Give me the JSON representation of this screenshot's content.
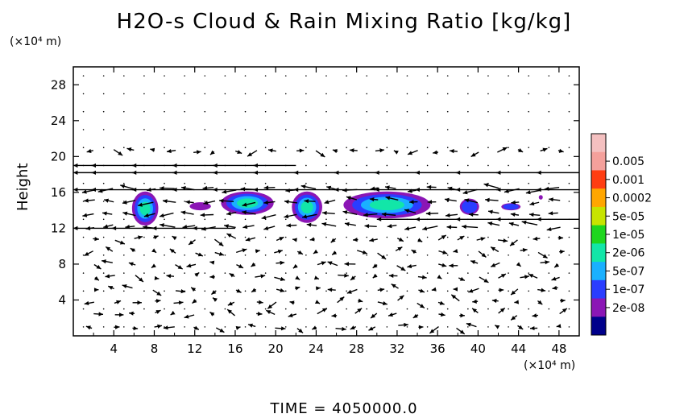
{
  "chart_data": {
    "type": "heatmap",
    "title": "H2O-s Cloud & Rain Mixing Ratio [kg/kg]",
    "ylabel": "Height",
    "xlabel": "",
    "x_unit_label": "(×10⁴ m)",
    "y_unit_label": "(×10⁴ m)",
    "xlim": [
      0,
      50
    ],
    "ylim": [
      0,
      30
    ],
    "x_ticks": [
      4,
      8,
      12,
      16,
      20,
      24,
      28,
      32,
      36,
      40,
      44,
      48
    ],
    "y_ticks": [
      4,
      8,
      12,
      16,
      20,
      24,
      28
    ],
    "grid": true,
    "legend_position": "right",
    "colorbar": [
      {
        "label": "0.005",
        "color": "#f4a09b"
      },
      {
        "label": "0.001",
        "color": "#ff3d12"
      },
      {
        "label": "0.0002",
        "color": "#ffa600"
      },
      {
        "label": "5e-05",
        "color": "#c7e400"
      },
      {
        "label": "1e-05",
        "color": "#1ed61e"
      },
      {
        "label": "2e-06",
        "color": "#12e6a8"
      },
      {
        "label": "5e-07",
        "color": "#1ab0ff"
      },
      {
        "label": "1e-07",
        "color": "#2a3dff"
      },
      {
        "label": "2e-08",
        "color": "#8b16b5"
      }
    ],
    "extra_colorbar_colors": [
      "#f4c0c0",
      "#00008b"
    ],
    "cloud_regions": [
      {
        "x_range": [
          5.8,
          8.4
        ],
        "y_range": [
          12.3,
          16.1
        ],
        "peak": "2e-06"
      },
      {
        "x_range": [
          11.5,
          13.6
        ],
        "y_range": [
          14.0,
          14.9
        ],
        "peak": "2e-08"
      },
      {
        "x_range": [
          14.6,
          19.8
        ],
        "y_range": [
          13.5,
          16.1
        ],
        "peak": "2e-06"
      },
      {
        "x_range": [
          21.6,
          24.6
        ],
        "y_range": [
          12.6,
          16.1
        ],
        "peak": "2e-06"
      },
      {
        "x_range": [
          26.7,
          35.3
        ],
        "y_range": [
          13.1,
          16.1
        ],
        "peak": "2e-06"
      },
      {
        "x_range": [
          38.2,
          40.1
        ],
        "y_range": [
          13.5,
          15.3
        ],
        "peak": "1e-07"
      },
      {
        "x_range": [
          42.3,
          44.2
        ],
        "y_range": [
          14.0,
          14.8
        ],
        "peak": "1e-07"
      },
      {
        "x_range": [
          46.0,
          46.4
        ],
        "y_range": [
          15.2,
          15.7
        ],
        "peak": "2e-08"
      }
    ],
    "wind_jets": [
      {
        "y": 19.0,
        "direction": "westward",
        "x_range": [
          0,
          22
        ]
      },
      {
        "y": 18.2,
        "direction": "westward",
        "x_range": [
          0,
          50
        ]
      },
      {
        "y": 16.3,
        "direction": "westward",
        "x_range": [
          0,
          50
        ]
      },
      {
        "y": 13.0,
        "direction": "westward",
        "x_range": [
          30,
          50
        ]
      },
      {
        "y": 12.0,
        "direction": "westward",
        "x_range": [
          0,
          16
        ]
      }
    ]
  },
  "footer": {
    "time_label": "TIME = 4050000.0"
  }
}
